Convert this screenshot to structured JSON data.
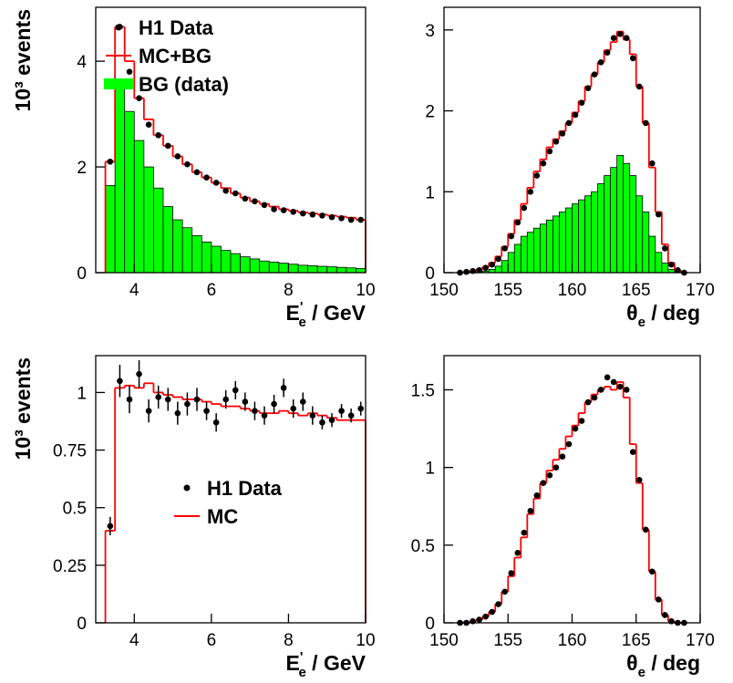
{
  "chart_data": [
    {
      "type": "histogram",
      "legend": true,
      "ylabel": "10³ events",
      "xlabel": {
        "symbol": "E",
        "prime": "'",
        "sub": "e",
        "unit": " / GeV"
      },
      "xlim": [
        3,
        10
      ],
      "xticks": [
        4,
        6,
        8,
        10
      ],
      "ylim": [
        0,
        5.02
      ],
      "yticks": [
        0,
        2,
        4
      ],
      "bins": [
        3.25,
        3.5,
        3.75,
        4,
        4.25,
        4.5,
        4.75,
        5,
        5.25,
        5.5,
        5.75,
        6,
        6.25,
        6.5,
        6.75,
        7,
        7.25,
        7.5,
        7.75,
        8,
        8.25,
        8.5,
        8.75,
        9,
        9.25,
        9.5,
        9.75,
        10
      ],
      "series": [
        {
          "name": "H1 Data",
          "style": "points",
          "color": "#000000",
          "values": [
            2.1,
            4.65,
            3.8,
            3.3,
            2.8,
            2.6,
            2.4,
            2.2,
            2.05,
            1.9,
            1.8,
            1.7,
            1.55,
            1.5,
            1.4,
            1.35,
            1.28,
            1.2,
            1.18,
            1.15,
            1.12,
            1.1,
            1.08,
            1.05,
            1.03,
            1.0,
            1.0
          ]
        },
        {
          "name": "MC+BG",
          "style": "step",
          "color": "#ff0000",
          "values": [
            2.1,
            4.65,
            4.0,
            3.3,
            2.9,
            2.6,
            2.4,
            2.2,
            2.05,
            1.9,
            1.8,
            1.7,
            1.6,
            1.5,
            1.42,
            1.35,
            1.3,
            1.25,
            1.2,
            1.17,
            1.14,
            1.12,
            1.1,
            1.08,
            1.06,
            1.04,
            1.0
          ]
        },
        {
          "name": "BG (data)",
          "style": "filled",
          "color": "#00ff00",
          "values": [
            1.65,
            3.6,
            3.05,
            2.5,
            2.0,
            1.6,
            1.25,
            1.0,
            0.85,
            0.7,
            0.58,
            0.5,
            0.42,
            0.36,
            0.3,
            0.26,
            0.22,
            0.2,
            0.18,
            0.16,
            0.14,
            0.13,
            0.12,
            0.11,
            0.1,
            0.09,
            0.08
          ]
        }
      ]
    },
    {
      "type": "histogram",
      "legend": false,
      "xlabel": {
        "symbol": "θ",
        "sub": "e",
        "unit": " / deg"
      },
      "xlim": [
        150,
        170
      ],
      "xticks": [
        150,
        155,
        160,
        165,
        170
      ],
      "ylim": [
        0,
        3.28
      ],
      "yticks": [
        0,
        1,
        2,
        3
      ],
      "bins": [
        151,
        151.5,
        152,
        152.5,
        153,
        153.5,
        154,
        154.5,
        155,
        155.5,
        156,
        156.5,
        157,
        157.5,
        158,
        158.5,
        159,
        159.5,
        160,
        160.5,
        161,
        161.5,
        162,
        162.5,
        163,
        163.5,
        164,
        164.5,
        165,
        165.5,
        166,
        166.5,
        167,
        167.5,
        168,
        168.5,
        169
      ],
      "series": [
        {
          "style": "points",
          "color": "#000000",
          "values": [
            0,
            0.01,
            0.02,
            0.03,
            0.06,
            0.1,
            0.17,
            0.3,
            0.45,
            0.62,
            0.8,
            1.0,
            1.2,
            1.35,
            1.5,
            1.62,
            1.72,
            1.85,
            1.95,
            2.1,
            2.28,
            2.45,
            2.6,
            2.72,
            2.9,
            2.95,
            2.9,
            2.65,
            2.3,
            1.85,
            1.35,
            0.72,
            0.3,
            0.1,
            0.03,
            0
          ]
        },
        {
          "style": "step",
          "color": "#ff0000",
          "values": [
            0,
            0.01,
            0.02,
            0.04,
            0.07,
            0.12,
            0.2,
            0.32,
            0.48,
            0.65,
            0.85,
            1.05,
            1.25,
            1.4,
            1.55,
            1.65,
            1.75,
            1.85,
            1.98,
            2.12,
            2.3,
            2.45,
            2.6,
            2.75,
            2.85,
            2.98,
            2.88,
            2.7,
            2.3,
            1.85,
            1.3,
            0.75,
            0.35,
            0.12,
            0.03,
            0
          ]
        },
        {
          "style": "filled",
          "color": "#00ff00",
          "values": [
            0,
            0,
            0,
            0.01,
            0.02,
            0.04,
            0.08,
            0.15,
            0.25,
            0.35,
            0.45,
            0.5,
            0.55,
            0.6,
            0.65,
            0.7,
            0.75,
            0.8,
            0.85,
            0.9,
            0.95,
            1.0,
            1.1,
            1.2,
            1.3,
            1.45,
            1.35,
            1.2,
            0.95,
            0.75,
            0.45,
            0.25,
            0.12,
            0.04,
            0.01,
            0
          ]
        }
      ]
    },
    {
      "type": "histogram",
      "legend": true,
      "ylabel": "10³ events",
      "xlabel": {
        "symbol": "E",
        "prime": "'",
        "sub": "e",
        "unit": " / GeV"
      },
      "xlim": [
        3,
        10
      ],
      "xticks": [
        4,
        6,
        8,
        10
      ],
      "ylim": [
        0,
        1.16
      ],
      "yticks": [
        0,
        0.25,
        0.5,
        0.75,
        1
      ],
      "bins": [
        3.25,
        3.5,
        3.75,
        4,
        4.25,
        4.5,
        4.75,
        5,
        5.25,
        5.5,
        5.75,
        6,
        6.25,
        6.5,
        6.75,
        7,
        7.25,
        7.5,
        7.75,
        8,
        8.25,
        8.5,
        8.75,
        9,
        9.25,
        9.5,
        9.75,
        10
      ],
      "series": [
        {
          "name": "H1 Data",
          "style": "points",
          "color": "#000000",
          "values": [
            0.42,
            1.05,
            0.97,
            1.08,
            0.92,
            0.98,
            0.97,
            0.91,
            0.95,
            0.97,
            0.92,
            0.87,
            0.97,
            1.01,
            0.96,
            0.92,
            0.9,
            0.95,
            1.02,
            0.93,
            0.96,
            0.9,
            0.87,
            0.88,
            0.92,
            0.9,
            0.93
          ],
          "errors": [
            0.04,
            0.07,
            0.06,
            0.06,
            0.05,
            0.05,
            0.05,
            0.05,
            0.05,
            0.05,
            0.04,
            0.04,
            0.04,
            0.04,
            0.04,
            0.04,
            0.04,
            0.04,
            0.04,
            0.04,
            0.04,
            0.04,
            0.03,
            0.03,
            0.03,
            0.03,
            0.03
          ]
        },
        {
          "name": "MC",
          "style": "step",
          "color": "#ff0000",
          "values": [
            0.4,
            1.02,
            1.03,
            1.02,
            1.04,
            1.0,
            0.99,
            0.98,
            0.97,
            0.97,
            0.96,
            0.95,
            0.94,
            0.94,
            0.93,
            0.92,
            0.91,
            0.91,
            0.92,
            0.91,
            0.9,
            0.91,
            0.9,
            0.89,
            0.88,
            0.88,
            0.88
          ]
        }
      ]
    },
    {
      "type": "histogram",
      "legend": false,
      "xlabel": {
        "symbol": "θ",
        "sub": "e",
        "unit": " / deg"
      },
      "xlim": [
        150,
        170
      ],
      "xticks": [
        150,
        155,
        160,
        165,
        170
      ],
      "ylim": [
        0,
        1.72
      ],
      "yticks": [
        0,
        0.5,
        1,
        1.5
      ],
      "bins": [
        151,
        151.5,
        152,
        152.5,
        153,
        153.5,
        154,
        154.5,
        155,
        155.5,
        156,
        156.5,
        157,
        157.5,
        158,
        158.5,
        159,
        159.5,
        160,
        160.5,
        161,
        161.5,
        162,
        162.5,
        163,
        163.5,
        164,
        164.5,
        165,
        165.5,
        166,
        166.5,
        167,
        167.5,
        168,
        168.5,
        169
      ],
      "series": [
        {
          "style": "points",
          "color": "#000000",
          "values": [
            0,
            0,
            0.01,
            0.02,
            0.04,
            0.07,
            0.12,
            0.2,
            0.32,
            0.45,
            0.58,
            0.72,
            0.82,
            0.9,
            0.95,
            1.0,
            1.07,
            1.15,
            1.25,
            1.3,
            1.42,
            1.45,
            1.5,
            1.58,
            1.55,
            1.52,
            1.5,
            1.1,
            0.92,
            0.6,
            0.33,
            0.15,
            0.05,
            0.01,
            0,
            0
          ]
        },
        {
          "style": "step",
          "color": "#ff0000",
          "values": [
            0,
            0.005,
            0.01,
            0.02,
            0.04,
            0.07,
            0.12,
            0.2,
            0.3,
            0.42,
            0.55,
            0.7,
            0.8,
            0.9,
            0.98,
            1.05,
            1.12,
            1.2,
            1.27,
            1.35,
            1.42,
            1.47,
            1.5,
            1.52,
            1.5,
            1.55,
            1.45,
            1.15,
            0.9,
            0.6,
            0.33,
            0.15,
            0.05,
            0.01,
            0,
            0
          ]
        }
      ]
    }
  ]
}
